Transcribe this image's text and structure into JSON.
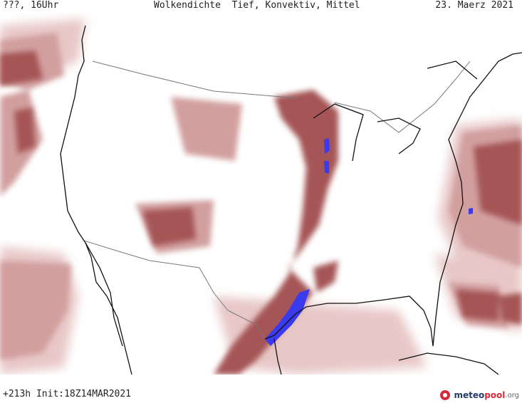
{
  "header": {
    "left": "???, 16Uhr",
    "title": "Wolkendichte  Tief, Konvektiv, Mittel",
    "date": "23. Maerz 2021"
  },
  "footer": {
    "run": "+213h  Init:18Z14MAR2021",
    "brand_main": "meteo",
    "brand_accent": "pool",
    "brand_tld": ".org"
  },
  "colors": {
    "cloud_light": "#e8c7c7",
    "cloud_medium": "#d29f9f",
    "cloud_dense": "#a55555",
    "convective": "#3a3aee",
    "coast": "#111111",
    "border": "#777777"
  },
  "icons": {
    "logo": "meteopool-logo-icon"
  }
}
